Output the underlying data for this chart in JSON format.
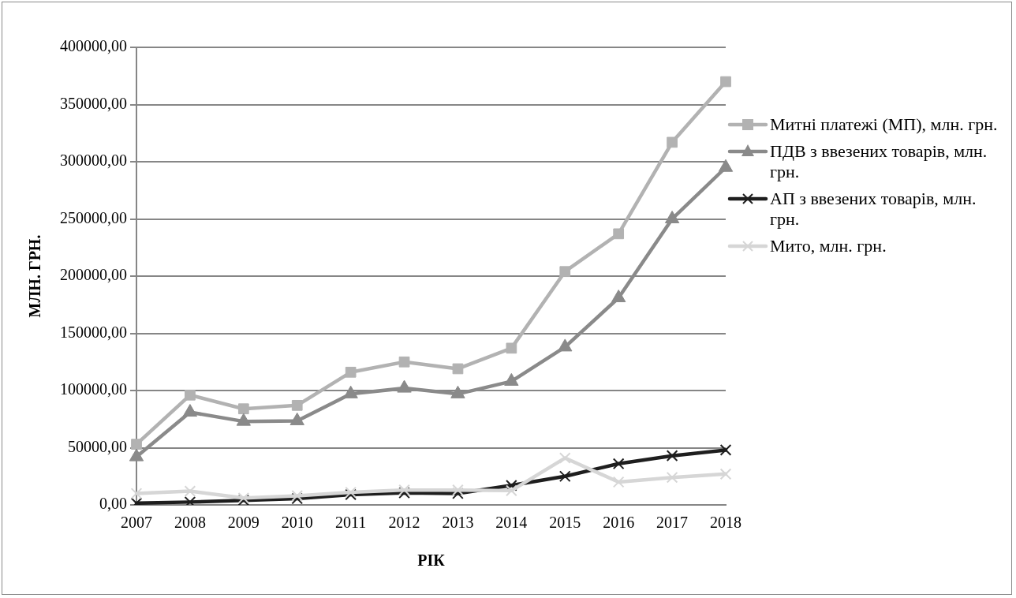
{
  "chart_data": {
    "type": "line",
    "xlabel": "РІК",
    "ylabel": "МЛН. ГРН.",
    "categories": [
      "2007",
      "2008",
      "2009",
      "2010",
      "2011",
      "2012",
      "2013",
      "2014",
      "2015",
      "2016",
      "2017",
      "2018"
    ],
    "ylim": [
      0,
      400000
    ],
    "yticks": [
      {
        "value": 0,
        "label": "0,00"
      },
      {
        "value": 50000,
        "label": "50000,00"
      },
      {
        "value": 100000,
        "label": "100000,00"
      },
      {
        "value": 150000,
        "label": "150000,00"
      },
      {
        "value": 200000,
        "label": "200000,00"
      },
      {
        "value": 250000,
        "label": "250000,00"
      },
      {
        "value": 300000,
        "label": "300000,00"
      },
      {
        "value": 350000,
        "label": "350000,00"
      },
      {
        "value": 400000,
        "label": "400000,00"
      }
    ],
    "grid": "y",
    "legend": "right",
    "line_style": "solid",
    "series": [
      {
        "name": "Митні платежі (МП), млн. грн.",
        "color": "#b2b2b2",
        "marker": "square",
        "values": [
          53000,
          96000,
          84000,
          87000,
          116000,
          125000,
          119000,
          137000,
          204000,
          237000,
          317000,
          370000
        ]
      },
      {
        "name": "ПДВ з ввезених товарів, млн. грн.",
        "color": "#8a8a8a",
        "marker": "triangle",
        "values": [
          42000,
          81000,
          73000,
          73500,
          97000,
          102000,
          97000,
          108000,
          138000,
          181000,
          250000,
          295000
        ]
      },
      {
        "name": "АП з ввезених товарів, млн. грн.",
        "color": "#1e1e1e",
        "marker": "cross",
        "values": [
          1500,
          2500,
          4000,
          5500,
          9000,
          10500,
          10000,
          17000,
          25000,
          36000,
          43000,
          48000
        ]
      },
      {
        "name": "Мито, млн. грн.",
        "color": "#d6d6d6",
        "marker": "cross",
        "values": [
          10000,
          12000,
          6000,
          8000,
          11000,
          13000,
          13000,
          12500,
          41000,
          20000,
          24000,
          27000
        ]
      }
    ]
  }
}
